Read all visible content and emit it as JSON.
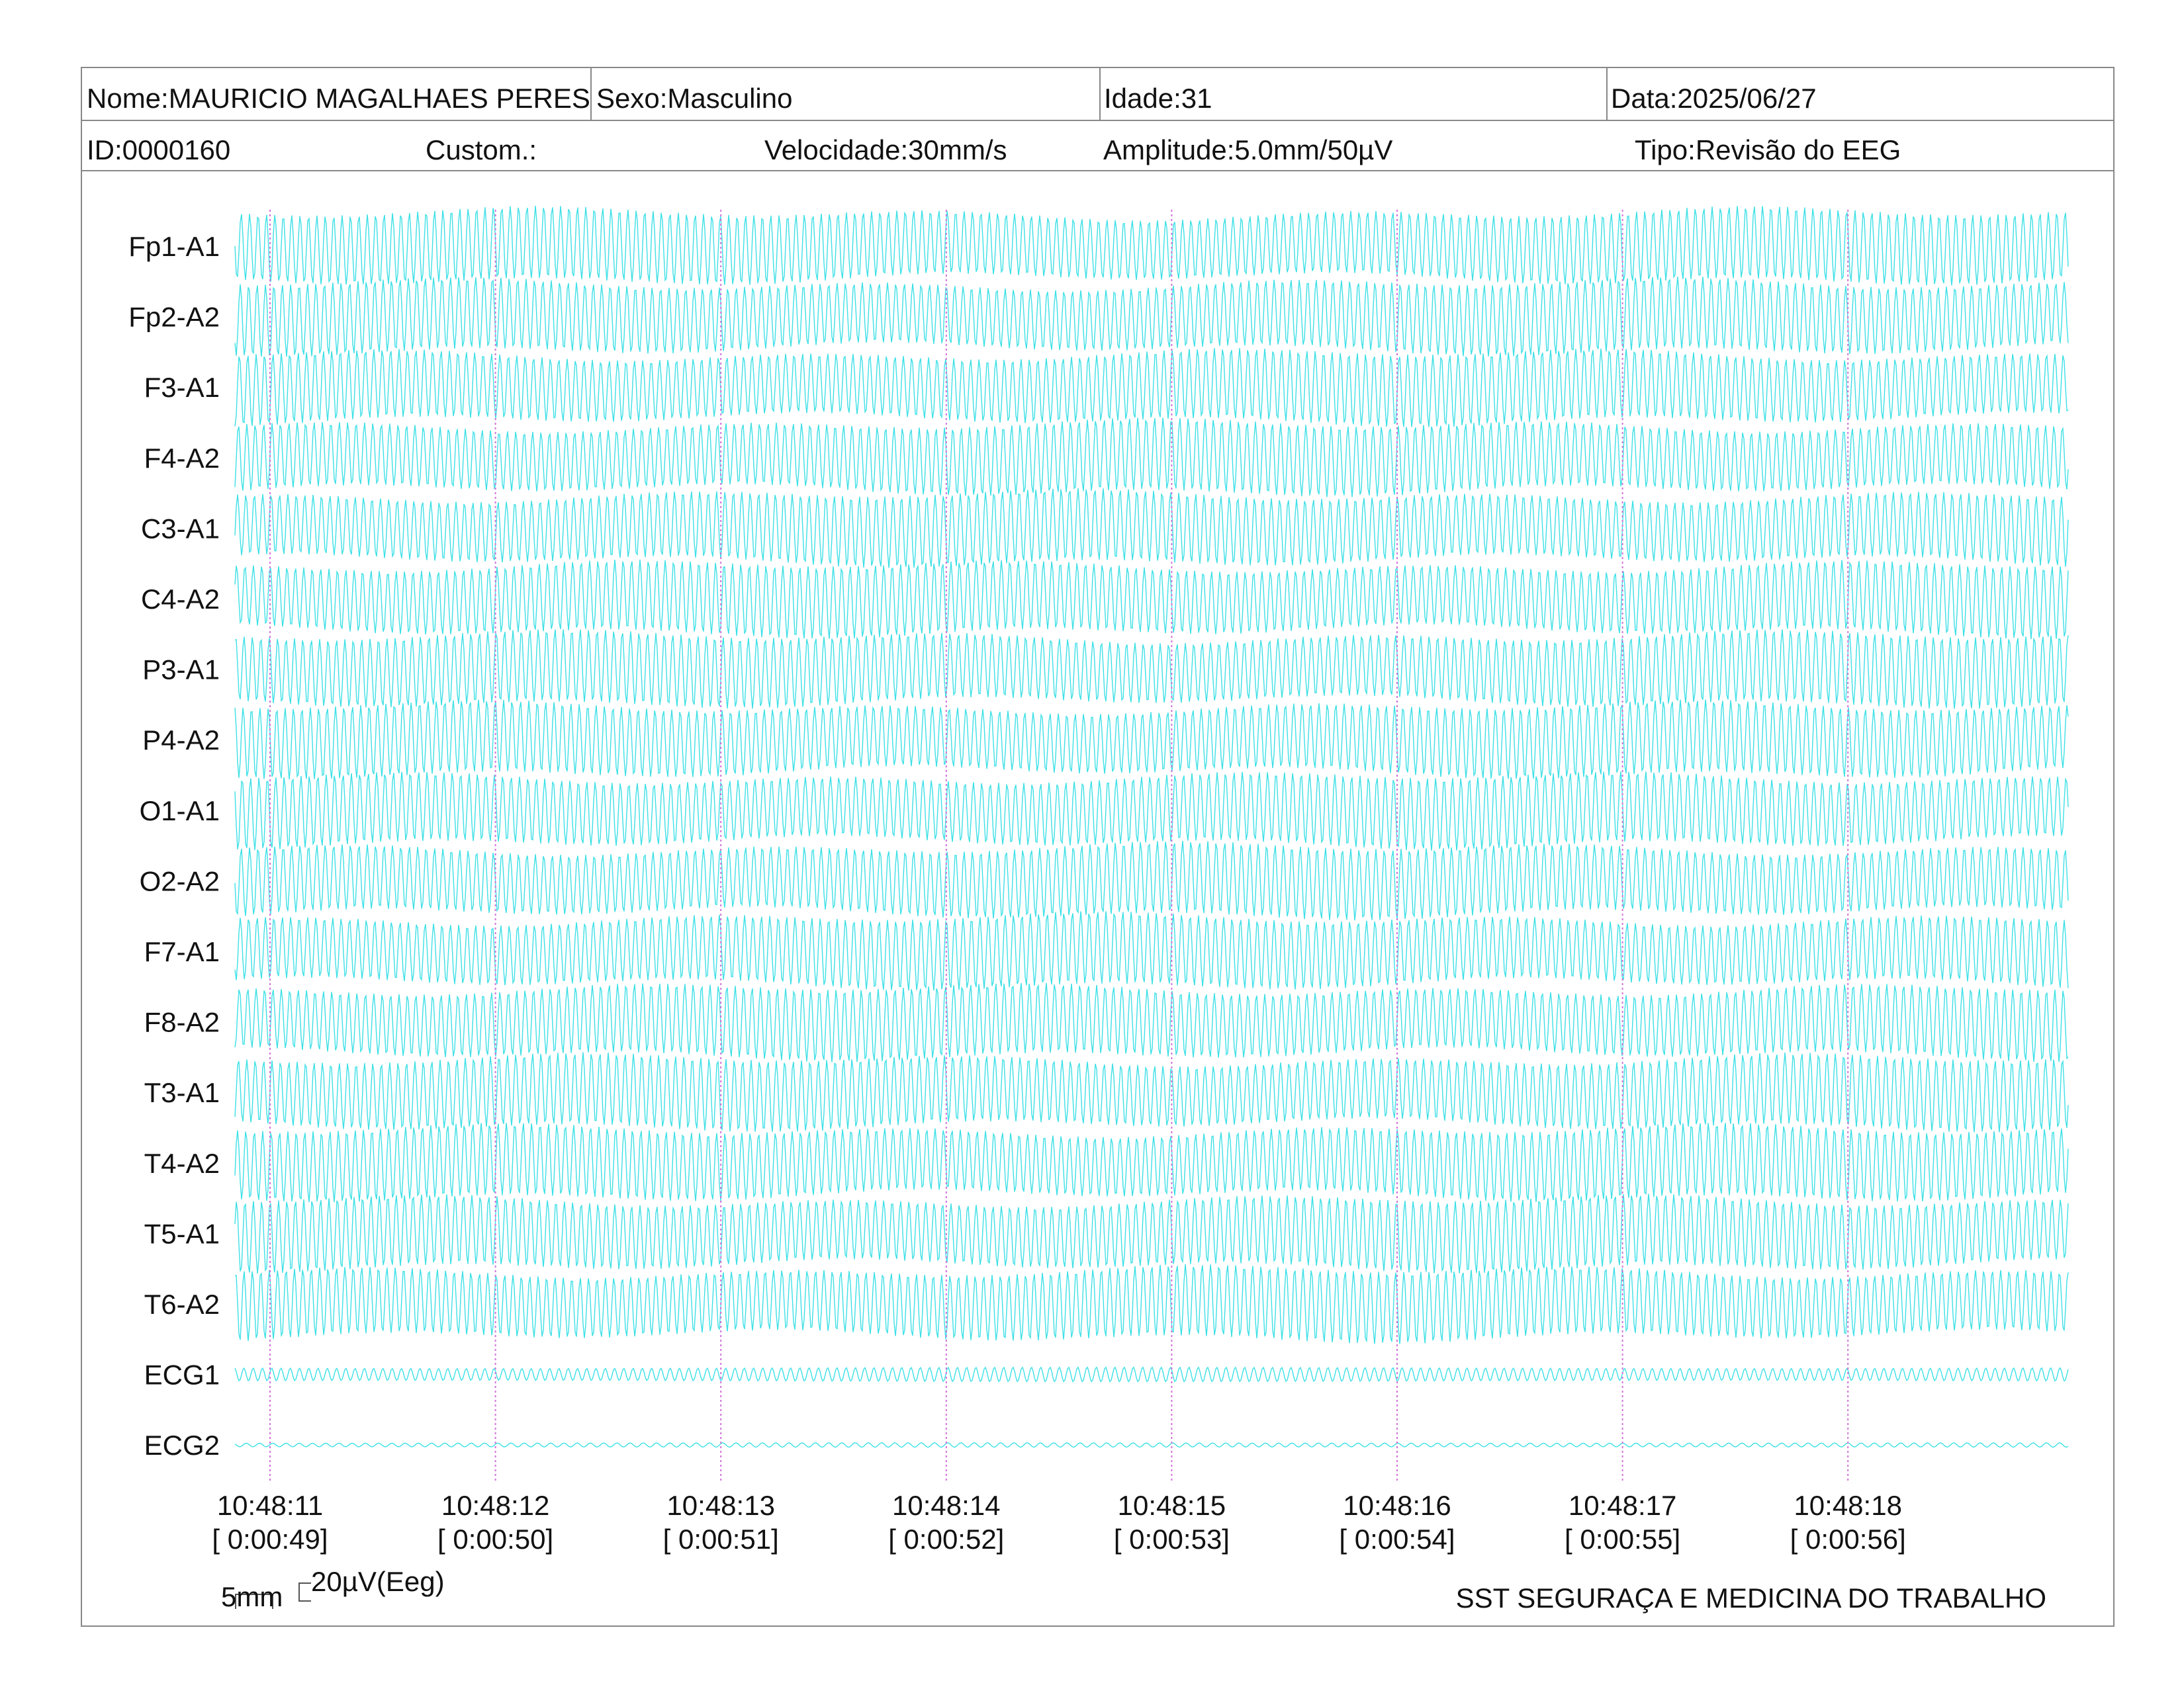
{
  "header": {
    "name": "Nome:MAURICIO MAGALHAES PERES",
    "sex": "Sexo:Masculino",
    "age": "Idade:31",
    "date": "Data:2025/06/27",
    "id": "ID:0000160",
    "custom": "Custom.:",
    "speed": "Velocidade:30mm/s",
    "amplitude": "Amplitude:5.0mm/50µV",
    "type": "Tipo:Revisão do EEG"
  },
  "channels": [
    "Fp1-A1",
    "Fp2-A2",
    "F3-A1",
    "F4-A2",
    "C3-A1",
    "C4-A2",
    "P3-A1",
    "P4-A2",
    "O1-A1",
    "O2-A2",
    "F7-A1",
    "F8-A2",
    "T3-A1",
    "T4-A2",
    "T5-A1",
    "T6-A2",
    "ECG1",
    "ECG2"
  ],
  "time_marks": [
    {
      "time": "10:48:11",
      "elapsed": "[ 0:00:49]"
    },
    {
      "time": "10:48:12",
      "elapsed": "[ 0:00:50]"
    },
    {
      "time": "10:48:13",
      "elapsed": "[ 0:00:51]"
    },
    {
      "time": "10:48:14",
      "elapsed": "[ 0:00:52]"
    },
    {
      "time": "10:48:15",
      "elapsed": "[ 0:00:53]"
    },
    {
      "time": "10:48:16",
      "elapsed": "[ 0:00:54]"
    },
    {
      "time": "10:48:17",
      "elapsed": "[ 0:00:55]"
    },
    {
      "time": "10:48:18",
      "elapsed": "[ 0:00:56]"
    }
  ],
  "scale": {
    "time": "5mm",
    "amplitude": "20µV(Eeg)"
  },
  "footer": "SST SEGURAÇA E MEDICINA DO TRABALHO"
}
